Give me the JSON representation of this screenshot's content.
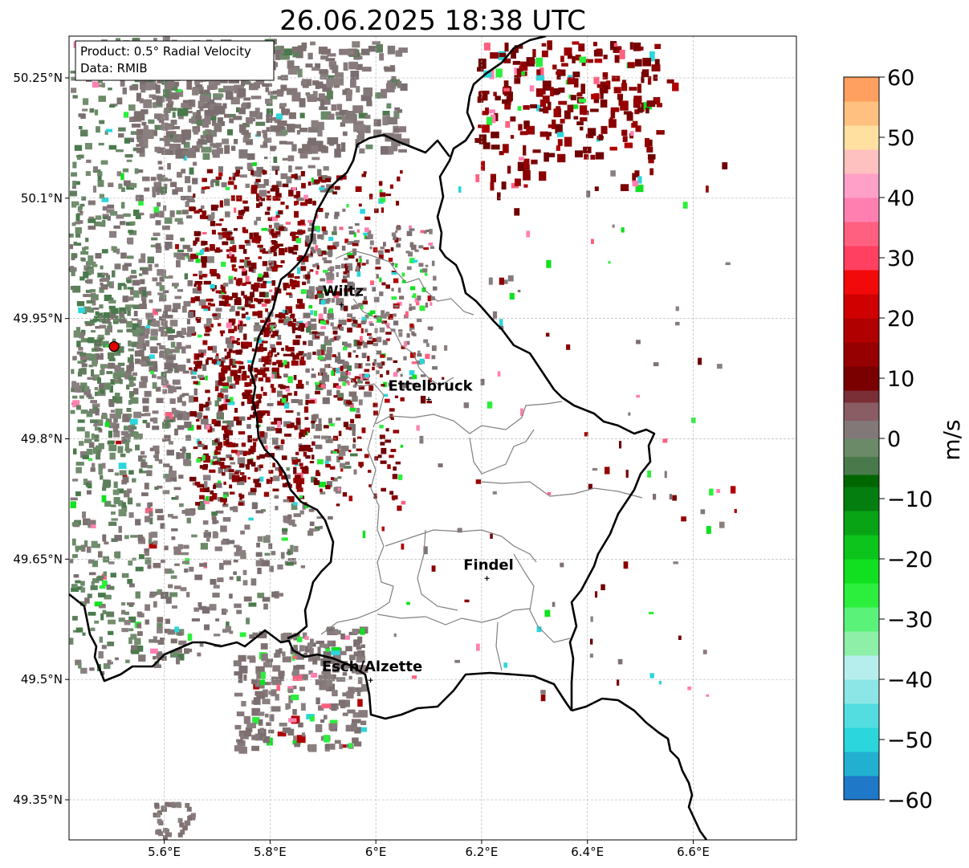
{
  "title": "26.06.2025 18:38 UTC",
  "info": {
    "product": "Product: 0.5° Radial Velocity",
    "data": "Data: RMIB"
  },
  "map": {
    "lon_range": [
      5.42,
      6.795
    ],
    "lat_range": [
      49.3,
      50.302
    ],
    "xticks": [
      {
        "value": 5.6,
        "label": "5.6°E"
      },
      {
        "value": 5.8,
        "label": "5.8°E"
      },
      {
        "value": 6.0,
        "label": "6°E"
      },
      {
        "value": 6.2,
        "label": "6.2°E"
      },
      {
        "value": 6.4,
        "label": "6.4°E"
      },
      {
        "value": 6.6,
        "label": "6.6°E"
      }
    ],
    "yticks": [
      {
        "value": 49.35,
        "label": "49.35°N"
      },
      {
        "value": 49.5,
        "label": "49.5°N"
      },
      {
        "value": 49.65,
        "label": "49.65°N"
      },
      {
        "value": 49.8,
        "label": "49.8°N"
      },
      {
        "value": 49.95,
        "label": "49.95°N"
      },
      {
        "value": 50.1,
        "label": "50.1°N"
      },
      {
        "value": 50.25,
        "label": "50.25°N"
      }
    ],
    "grid": true,
    "radar_site": {
      "lon": 5.505,
      "lat": 49.915
    },
    "cities": [
      {
        "name": "Wiltz",
        "lon": 5.935,
        "lat": 49.967
      },
      {
        "name": "Ettelbruck",
        "lon": 6.1,
        "lat": 49.849
      },
      {
        "name": "Findel",
        "lon": 6.21,
        "lat": 49.626
      },
      {
        "name": "Esch/Alzette",
        "lon": 5.99,
        "lat": 49.499
      }
    ]
  },
  "colorbar": {
    "label": "m/s",
    "min": -60,
    "max": 60,
    "ticks": [
      {
        "value": 60,
        "label": "60"
      },
      {
        "value": 50,
        "label": "50"
      },
      {
        "value": 40,
        "label": "40"
      },
      {
        "value": 30,
        "label": "30"
      },
      {
        "value": 20,
        "label": "20"
      },
      {
        "value": 10,
        "label": "10"
      },
      {
        "value": 0,
        "label": "0"
      },
      {
        "value": -10,
        "label": "−10"
      },
      {
        "value": -20,
        "label": "−20"
      },
      {
        "value": -30,
        "label": "−30"
      },
      {
        "value": -40,
        "label": "−40"
      },
      {
        "value": -50,
        "label": "−50"
      },
      {
        "value": -60,
        "label": "−60"
      }
    ],
    "segments": [
      {
        "from": -60,
        "to": -56,
        "color": "#1f78c8"
      },
      {
        "from": -56,
        "to": -52,
        "color": "#22b0d0"
      },
      {
        "from": -52,
        "to": -48,
        "color": "#2bd6dc"
      },
      {
        "from": -48,
        "to": -44,
        "color": "#53dde0"
      },
      {
        "from": -44,
        "to": -40,
        "color": "#8ce6e6"
      },
      {
        "from": -40,
        "to": -36,
        "color": "#b6eeee"
      },
      {
        "from": -36,
        "to": -32,
        "color": "#8ef0a8"
      },
      {
        "from": -32,
        "to": -28,
        "color": "#5bf27a"
      },
      {
        "from": -28,
        "to": -24,
        "color": "#2cee3c"
      },
      {
        "from": -24,
        "to": -20,
        "color": "#10e020"
      },
      {
        "from": -20,
        "to": -16,
        "color": "#0cc41c"
      },
      {
        "from": -16,
        "to": -12,
        "color": "#08a415"
      },
      {
        "from": -12,
        "to": -8,
        "color": "#047e0e"
      },
      {
        "from": -8,
        "to": -6,
        "color": "#006600"
      },
      {
        "from": -6,
        "to": -3,
        "color": "#4a7a4c"
      },
      {
        "from": -3,
        "to": 0,
        "color": "#6a8a68"
      },
      {
        "from": 0,
        "to": 3,
        "color": "#837878"
      },
      {
        "from": 3,
        "to": 6,
        "color": "#8a5c64"
      },
      {
        "from": 6,
        "to": 8,
        "color": "#7a2e36"
      },
      {
        "from": 8,
        "to": 12,
        "color": "#7a0000"
      },
      {
        "from": 12,
        "to": 16,
        "color": "#960000"
      },
      {
        "from": 16,
        "to": 20,
        "color": "#b00000"
      },
      {
        "from": 20,
        "to": 24,
        "color": "#d00000"
      },
      {
        "from": 24,
        "to": 28,
        "color": "#f20a0a"
      },
      {
        "from": 28,
        "to": 32,
        "color": "#ff4060"
      },
      {
        "from": 32,
        "to": 36,
        "color": "#ff6080"
      },
      {
        "from": 36,
        "to": 40,
        "color": "#ff80b0"
      },
      {
        "from": 40,
        "to": 44,
        "color": "#ffa0c8"
      },
      {
        "from": 44,
        "to": 48,
        "color": "#ffc0c0"
      },
      {
        "from": 48,
        "to": 52,
        "color": "#ffe0a0"
      },
      {
        "from": 52,
        "to": 56,
        "color": "#ffc080"
      },
      {
        "from": 56,
        "to": 60,
        "color": "#ffa060"
      }
    ]
  },
  "colors": {
    "border": "#000000",
    "canton": "#808080",
    "grid": "#bbbbbb",
    "radar_marker": "#e00000",
    "inbound_main": "#837878",
    "outbound_main": "#7a0000"
  }
}
